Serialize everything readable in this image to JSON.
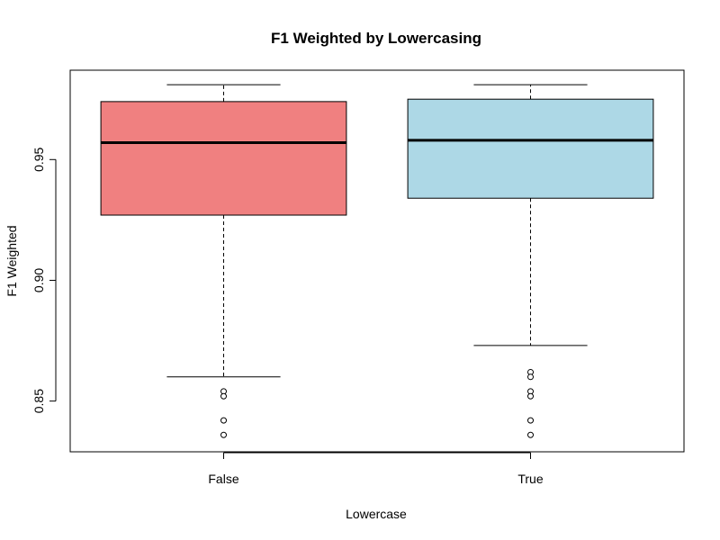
{
  "chart_data": {
    "type": "boxplot",
    "title": "F1 Weighted by Lowercasing",
    "xlabel": "Lowercase",
    "ylabel": "F1 Weighted",
    "categories": [
      "False",
      "True"
    ],
    "ylim": [
      0.829,
      0.987
    ],
    "yticks": [
      0.85,
      0.9,
      0.95
    ],
    "ytick_labels": [
      "0.85",
      "0.90",
      "0.95"
    ],
    "grid": false,
    "legend": "none",
    "boxes": [
      {
        "category": "False",
        "color": "#F08080",
        "whisker_low": 0.86,
        "q1": 0.927,
        "median": 0.957,
        "q3": 0.974,
        "whisker_high": 0.981,
        "outliers": [
          0.854,
          0.852,
          0.842,
          0.836
        ]
      },
      {
        "category": "True",
        "color": "#ADD8E6",
        "whisker_low": 0.873,
        "q1": 0.934,
        "median": 0.958,
        "q3": 0.975,
        "whisker_high": 0.981,
        "outliers": [
          0.862,
          0.86,
          0.854,
          0.852,
          0.842,
          0.836
        ]
      }
    ]
  }
}
